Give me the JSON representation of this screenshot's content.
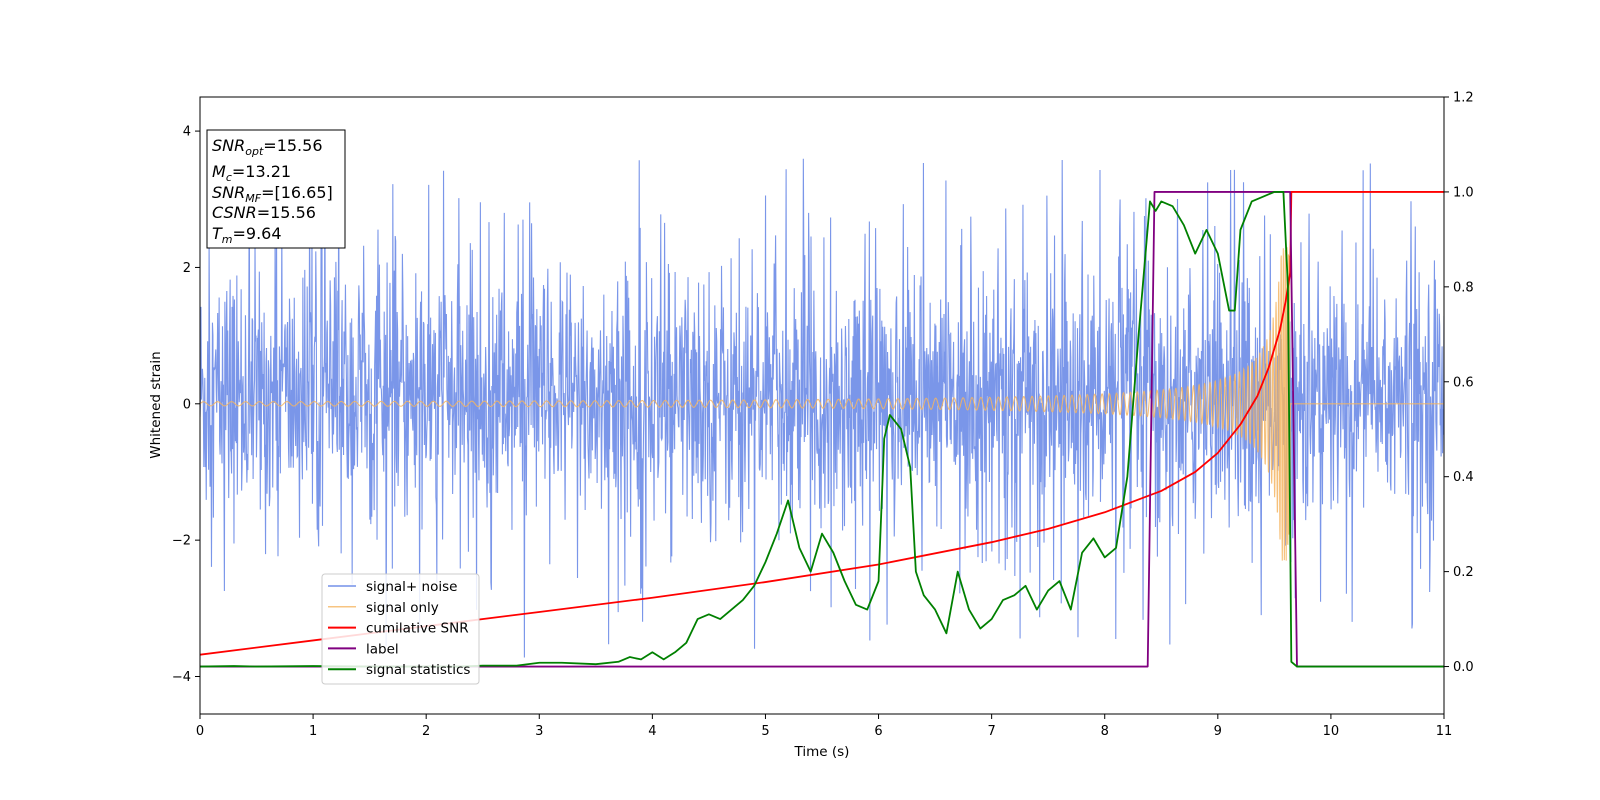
{
  "chart_data": {
    "type": "line",
    "title": "",
    "xlabel": "Time (s)",
    "ylabel": "Whitened strain",
    "y2label": "",
    "xlim": [
      0,
      11
    ],
    "ylim": [
      -4.55,
      4.5
    ],
    "y2lim": [
      -0.1,
      1.2
    ],
    "x_ticks": [
      0,
      1,
      2,
      3,
      4,
      5,
      6,
      7,
      8,
      9,
      10,
      11
    ],
    "y_ticks": [
      -4,
      -2,
      0,
      2,
      4
    ],
    "y2_ticks": [
      0.0,
      0.2,
      0.4,
      0.6,
      0.8,
      1.0,
      1.2
    ],
    "grid": false,
    "legend_position": "lower-left",
    "info_box": {
      "lines": [
        {
          "sym": "SNR",
          "sub": "opt",
          "rest": "=15.56"
        },
        {
          "sym": "M",
          "sub": "c",
          "rest": "=13.21"
        },
        {
          "sym": "SNR",
          "sub": "MF",
          "rest": "=[16.65]"
        },
        {
          "sym": "CSNR",
          "sub": "",
          "rest": "=15.56"
        },
        {
          "sym": "T",
          "sub": "m",
          "rest": "=9.64"
        }
      ]
    },
    "series": [
      {
        "name": "signal+ noise",
        "axis": "left",
        "color": "#7390e8",
        "description_kind": "noise_band",
        "band": {
          "lower": -1.8,
          "upper": 2.0,
          "spike_max": 4.1,
          "spike_min": -4.15
        }
      },
      {
        "name": "signal only",
        "axis": "left",
        "color": "#f5b562",
        "description_kind": "chirp",
        "chirp": {
          "end_time": 9.64,
          "end_amplitude": 2.3,
          "start_amplitude": 0.03
        }
      },
      {
        "name": "cumilative SNR",
        "axis": "right",
        "color": "#ff0000",
        "x": [
          0,
          1,
          2,
          3,
          4,
          5,
          6,
          7,
          7.5,
          8,
          8.5,
          8.8,
          9.0,
          9.2,
          9.35,
          9.45,
          9.55,
          9.6,
          9.64,
          9.65,
          11
        ],
        "values": [
          0.025,
          0.055,
          0.085,
          0.115,
          0.145,
          0.178,
          0.215,
          0.262,
          0.29,
          0.325,
          0.37,
          0.41,
          0.45,
          0.51,
          0.57,
          0.63,
          0.71,
          0.77,
          0.83,
          1.0,
          1.0
        ]
      },
      {
        "name": "label",
        "axis": "right",
        "color": "#800080",
        "x": [
          0,
          8.38,
          8.44,
          9.64,
          9.7,
          11
        ],
        "values": [
          0,
          0,
          1,
          1,
          0,
          0
        ]
      },
      {
        "name": "signal statistics",
        "axis": "right",
        "color": "#008000",
        "x": [
          0,
          0.3,
          0.5,
          1.0,
          1.5,
          2.0,
          2.3,
          2.5,
          2.8,
          3.0,
          3.2,
          3.5,
          3.7,
          3.8,
          3.9,
          4.0,
          4.1,
          4.2,
          4.3,
          4.4,
          4.5,
          4.6,
          4.7,
          4.8,
          4.9,
          5.0,
          5.1,
          5.2,
          5.3,
          5.4,
          5.5,
          5.6,
          5.7,
          5.8,
          5.9,
          6.0,
          6.05,
          6.1,
          6.2,
          6.28,
          6.33,
          6.4,
          6.5,
          6.6,
          6.7,
          6.8,
          6.9,
          7.0,
          7.1,
          7.2,
          7.3,
          7.4,
          7.5,
          7.6,
          7.7,
          7.8,
          7.9,
          8.0,
          8.1,
          8.2,
          8.3,
          8.4,
          8.45,
          8.5,
          8.6,
          8.7,
          8.8,
          8.9,
          9.0,
          9.1,
          9.15,
          9.2,
          9.3,
          9.4,
          9.5,
          9.58,
          9.62,
          9.65,
          9.7,
          9.8,
          10,
          11
        ],
        "values": [
          0.0,
          0.001,
          0.0,
          0.001,
          0.0,
          0.0,
          0.0,
          0.002,
          0.002,
          0.008,
          0.008,
          0.005,
          0.01,
          0.02,
          0.015,
          0.03,
          0.015,
          0.03,
          0.05,
          0.1,
          0.11,
          0.1,
          0.12,
          0.14,
          0.17,
          0.22,
          0.28,
          0.35,
          0.25,
          0.2,
          0.28,
          0.24,
          0.18,
          0.13,
          0.12,
          0.18,
          0.48,
          0.53,
          0.5,
          0.42,
          0.2,
          0.15,
          0.12,
          0.07,
          0.2,
          0.12,
          0.08,
          0.1,
          0.14,
          0.15,
          0.17,
          0.12,
          0.16,
          0.18,
          0.12,
          0.24,
          0.27,
          0.23,
          0.25,
          0.4,
          0.7,
          0.98,
          0.96,
          0.98,
          0.97,
          0.93,
          0.87,
          0.92,
          0.87,
          0.75,
          0.75,
          0.92,
          0.98,
          0.99,
          1.0,
          1.0,
          0.8,
          0.01,
          0.0,
          0.0,
          0.0,
          0.0
        ]
      }
    ]
  }
}
